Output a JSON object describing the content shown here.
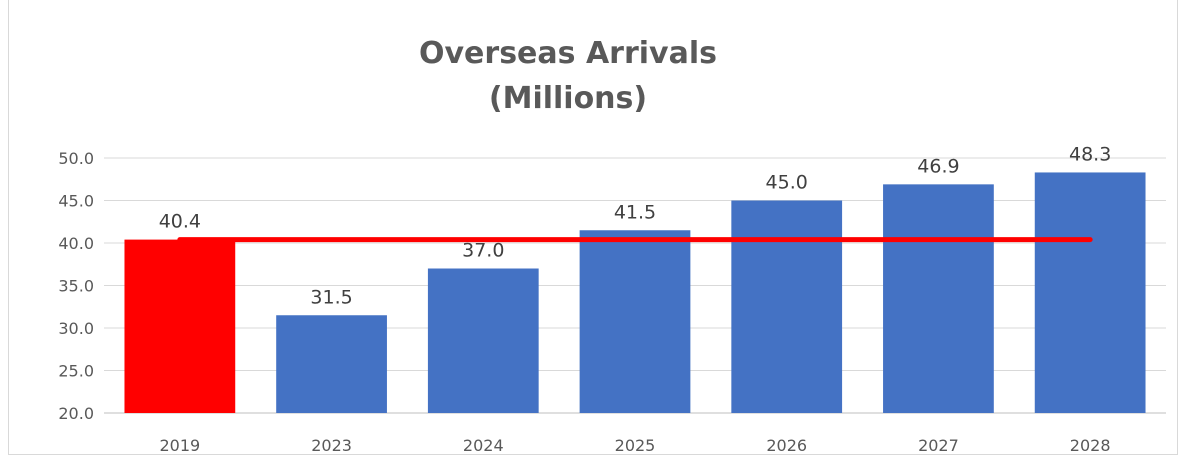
{
  "chart_data": {
    "type": "bar",
    "title": "Overseas Arrivals",
    "subtitle": "(Millions)",
    "categories": [
      "2019",
      "2023",
      "2024",
      "2025",
      "2026",
      "2027",
      "2028"
    ],
    "values": [
      40.4,
      31.5,
      37.0,
      41.5,
      45.0,
      46.9,
      48.3
    ],
    "data_labels": [
      "40.4",
      "31.5",
      "37.0",
      "41.5",
      "45.0",
      "46.9",
      "48.3"
    ],
    "bar_colors": [
      "#ff0000",
      "#4472c4",
      "#4472c4",
      "#4472c4",
      "#4472c4",
      "#4472c4",
      "#4472c4"
    ],
    "reference_line": {
      "value": 40.4,
      "color": "#ff0000"
    },
    "ylim": [
      20,
      50
    ],
    "y_ticks": [
      "20.0",
      "25.0",
      "30.0",
      "35.0",
      "40.0",
      "45.0",
      "50.0"
    ],
    "grid": true,
    "legend": "none",
    "xlabel": "",
    "ylabel": ""
  }
}
